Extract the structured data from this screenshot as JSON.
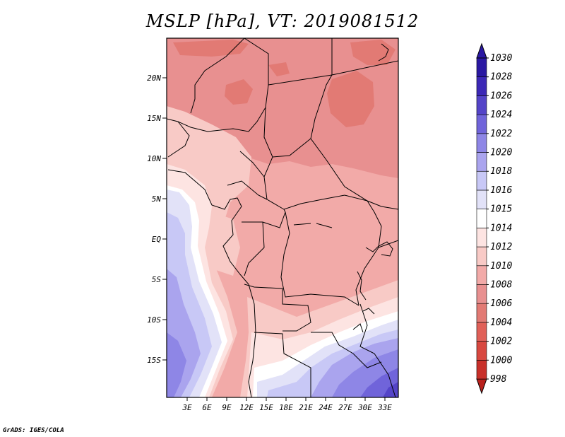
{
  "title": "MSLP [hPa], VT: 2019081512",
  "credit": "GrADS: IGES/COLA",
  "map": {
    "lat_labels": [
      "20N",
      "15N",
      "10N",
      "5N",
      "EQ",
      "5S",
      "10S",
      "15S"
    ],
    "lon_labels": [
      "3E",
      "6E",
      "9E",
      "12E",
      "15E",
      "18E",
      "21E",
      "24E",
      "27E",
      "30E",
      "33E"
    ]
  },
  "colorbar": {
    "levels": [
      "998",
      "1000",
      "1002",
      "1004",
      "1006",
      "1008",
      "1010",
      "1012",
      "1014",
      "1015",
      "1016",
      "1018",
      "1020",
      "1022",
      "1024",
      "1026",
      "1028",
      "1030"
    ],
    "colors": [
      "#b8201c",
      "#c8302a",
      "#d84840",
      "#e06058",
      "#e27a74",
      "#e89090",
      "#f2aaa8",
      "#f8cac6",
      "#fde4e2",
      "#ffffff",
      "#e2e2f8",
      "#c8c8f6",
      "#aaa4ee",
      "#8e86e6",
      "#7064da",
      "#5444c8",
      "#3c28b6",
      "#2a18a2",
      "#2a18a2"
    ]
  },
  "colors": {
    "low_pressure": "#e27a74",
    "high_pressure": "#5444c8"
  }
}
